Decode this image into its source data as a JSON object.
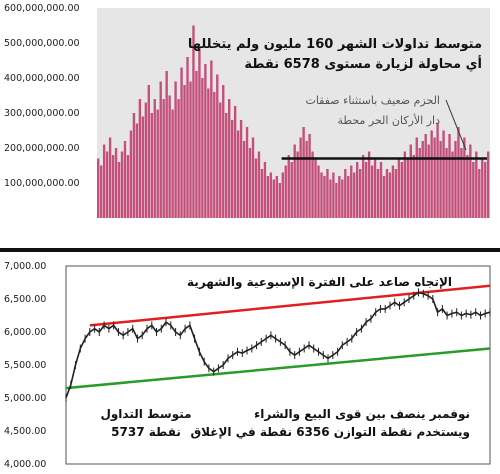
{
  "chart_data": [
    {
      "type": "bar",
      "title": "",
      "xlabel": "",
      "ylabel": "",
      "ylim": [
        0,
        600000000
      ],
      "yticks": [
        "100,000,000.00",
        "200,000,000.00",
        "300,000,000.00",
        "400,000,000.00",
        "500,000,000.00",
        "600,000,000.00"
      ],
      "bar_color": "#c4507a",
      "plot_background": "#e6e6e6",
      "grid": false,
      "values": [
        170000000,
        150000000,
        210000000,
        190000000,
        230000000,
        180000000,
        200000000,
        160000000,
        190000000,
        220000000,
        180000000,
        250000000,
        300000000,
        270000000,
        340000000,
        290000000,
        330000000,
        380000000,
        300000000,
        340000000,
        310000000,
        390000000,
        340000000,
        420000000,
        350000000,
        310000000,
        390000000,
        340000000,
        430000000,
        380000000,
        460000000,
        390000000,
        550000000,
        420000000,
        490000000,
        400000000,
        440000000,
        370000000,
        450000000,
        360000000,
        410000000,
        330000000,
        380000000,
        300000000,
        340000000,
        280000000,
        320000000,
        250000000,
        280000000,
        220000000,
        260000000,
        200000000,
        230000000,
        170000000,
        190000000,
        140000000,
        160000000,
        120000000,
        130000000,
        110000000,
        120000000,
        100000000,
        130000000,
        150000000,
        180000000,
        160000000,
        210000000,
        190000000,
        230000000,
        260000000,
        220000000,
        240000000,
        190000000,
        170000000,
        150000000,
        130000000,
        120000000,
        140000000,
        110000000,
        130000000,
        100000000,
        120000000,
        110000000,
        140000000,
        120000000,
        150000000,
        130000000,
        160000000,
        140000000,
        180000000,
        160000000,
        190000000,
        150000000,
        170000000,
        140000000,
        160000000,
        120000000,
        140000000,
        130000000,
        150000000,
        140000000,
        170000000,
        160000000,
        190000000,
        170000000,
        210000000,
        180000000,
        230000000,
        200000000,
        220000000,
        240000000,
        210000000,
        250000000,
        230000000,
        270000000,
        220000000,
        250000000,
        200000000,
        240000000,
        190000000,
        220000000,
        260000000,
        200000000,
        230000000,
        180000000,
        210000000,
        160000000,
        190000000,
        140000000,
        170000000,
        160000000,
        190000000
      ],
      "reference_line": {
        "value": 170000000,
        "from_index": 62,
        "to_index": 131,
        "color": "#111111"
      },
      "annotations": [
        {
          "text": "متوسط تداولات الشهر 160 مليون ولم يتخللها",
          "style": "bold"
        },
        {
          "text": "أي محاولة لزيارة مستوى 6578 نقطة",
          "style": "bold"
        },
        {
          "text": "الحزم ضعيف باستثناء صفقات",
          "style": "light"
        },
        {
          "text": "دار الأركان الحر محطة",
          "style": "light"
        }
      ]
    },
    {
      "type": "line",
      "title": "",
      "xlabel": "",
      "ylabel": "",
      "ylim": [
        4000,
        7000
      ],
      "yticks": [
        "4,000.00",
        "4,500.00",
        "5,000.00",
        "5,500.00",
        "6,000.00",
        "6,500.00",
        "7,000.00"
      ],
      "plot_background": "#ffffff",
      "grid": false,
      "x": [
        0,
        1,
        2,
        3,
        4,
        5,
        6,
        7,
        8,
        9,
        10,
        11,
        12,
        13,
        14,
        15,
        16,
        17,
        18,
        19,
        20,
        21,
        22,
        23,
        24,
        25,
        26,
        27,
        28,
        29,
        30,
        31,
        32,
        33,
        34,
        35,
        36,
        37,
        38,
        39,
        40,
        41,
        42,
        43,
        44,
        45,
        46,
        47,
        48,
        49,
        50,
        51,
        52,
        53,
        54,
        55,
        56,
        57,
        58,
        59,
        60,
        61,
        62,
        63,
        64,
        65,
        66,
        67,
        68,
        69,
        70,
        71,
        72,
        73,
        74,
        75,
        76,
        77,
        78,
        79,
        80,
        81,
        82,
        83,
        84,
        85,
        86,
        87,
        88,
        89
      ],
      "series": [
        {
          "name": "",
          "color": "#222222",
          "values": [
            5000,
            5200,
            5500,
            5750,
            5900,
            6000,
            6050,
            6000,
            6100,
            6050,
            6100,
            6000,
            5950,
            6000,
            6050,
            5900,
            5950,
            6050,
            6100,
            6000,
            6050,
            6150,
            6100,
            6000,
            5950,
            6050,
            6100,
            5900,
            5700,
            5550,
            5450,
            5400,
            5450,
            5500,
            5600,
            5650,
            5700,
            5680,
            5720,
            5750,
            5800,
            5850,
            5900,
            5950,
            5900,
            5850,
            5800,
            5700,
            5650,
            5700,
            5750,
            5800,
            5750,
            5700,
            5650,
            5600,
            5650,
            5700,
            5800,
            5850,
            5900,
            6000,
            6050,
            6150,
            6200,
            6300,
            6350,
            6350,
            6400,
            6450,
            6400,
            6450,
            6500,
            6550,
            6600,
            6580,
            6550,
            6500,
            6300,
            6350,
            6250,
            6280,
            6300,
            6250,
            6280,
            6260,
            6300,
            6250,
            6280,
            6300
          ]
        }
      ],
      "trendlines": [
        {
          "color": "#e02020",
          "from": [
            5,
            6100
          ],
          "to": [
            89,
            6700
          ]
        },
        {
          "color": "#2a9a2a",
          "from": [
            0,
            5150
          ],
          "to": [
            89,
            5750
          ]
        }
      ],
      "annotations": [
        {
          "text": "الإتجاه صاعد على الفترة الإسبوعية والشهرية",
          "style": "bold"
        },
        {
          "text": "متوسط التداول",
          "style": "bold"
        },
        {
          "text": "5737 نقطة",
          "style": "bold"
        },
        {
          "text": "نوفمبر ينصف بين قوى البيع والشراء",
          "style": "bold"
        },
        {
          "text": "ويستخدم نقطة التوازن 6356 نقطة في الإغلاق",
          "style": "bold"
        }
      ]
    }
  ]
}
